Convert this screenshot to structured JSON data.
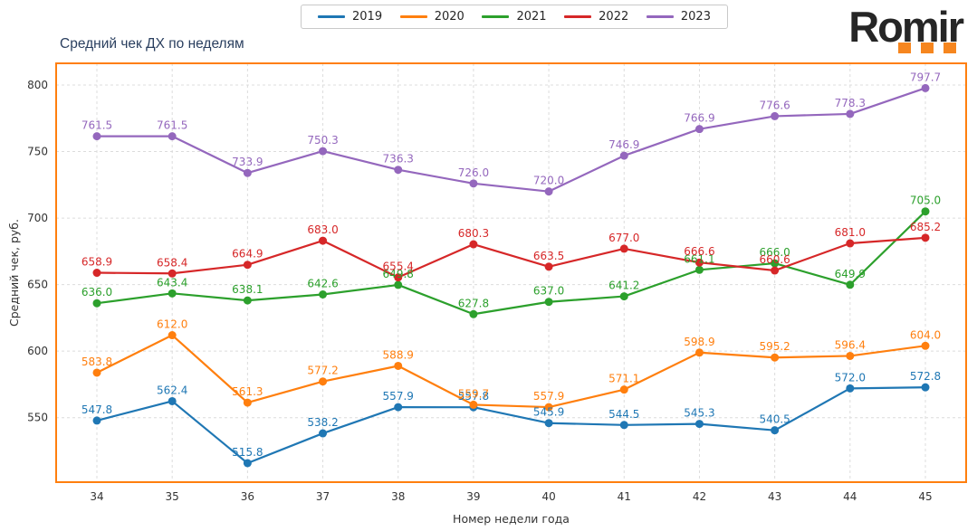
{
  "logo": {
    "text": "Romir",
    "text_color": "#262626",
    "dot_color": "#f6861f",
    "dots": 3
  },
  "chart_data": {
    "type": "line",
    "title": "Средний чек ДХ по неделям",
    "xlabel": "Номер недели года",
    "ylabel": "Средний чек, руб.",
    "x": [
      34,
      35,
      36,
      37,
      38,
      39,
      40,
      41,
      42,
      43,
      44,
      45
    ],
    "yticks": [
      550,
      600,
      650,
      700,
      750,
      800
    ],
    "ylim": [
      501,
      816
    ],
    "grid": true,
    "grid_style": "dashed",
    "legend_position": "top-center",
    "frame_color": "#ff7f0e",
    "marker": "circle",
    "data_labels": true,
    "series": [
      {
        "name": "2019",
        "color": "#1f77b4",
        "values": [
          547.8,
          562.4,
          515.8,
          538.2,
          557.9,
          557.8,
          545.9,
          544.5,
          545.3,
          540.5,
          572.0,
          572.8
        ]
      },
      {
        "name": "2020",
        "color": "#ff7f0e",
        "values": [
          583.8,
          612.0,
          561.3,
          577.2,
          588.9,
          559.7,
          557.9,
          571.1,
          598.9,
          595.2,
          596.4,
          604.0
        ]
      },
      {
        "name": "2021",
        "color": "#2ca02c",
        "values": [
          636.0,
          643.4,
          638.1,
          642.6,
          649.8,
          627.8,
          637.0,
          641.2,
          661.1,
          666.0,
          649.9,
          705.0
        ]
      },
      {
        "name": "2022",
        "color": "#d62728",
        "values": [
          658.9,
          658.4,
          664.9,
          683.0,
          655.4,
          680.3,
          663.5,
          677.0,
          666.6,
          660.6,
          681.0,
          685.2
        ]
      },
      {
        "name": "2023",
        "color": "#9467bd",
        "values": [
          761.5,
          761.5,
          733.9,
          750.3,
          736.3,
          726.0,
          720.0,
          746.9,
          766.9,
          776.6,
          778.3,
          797.7
        ]
      }
    ]
  }
}
